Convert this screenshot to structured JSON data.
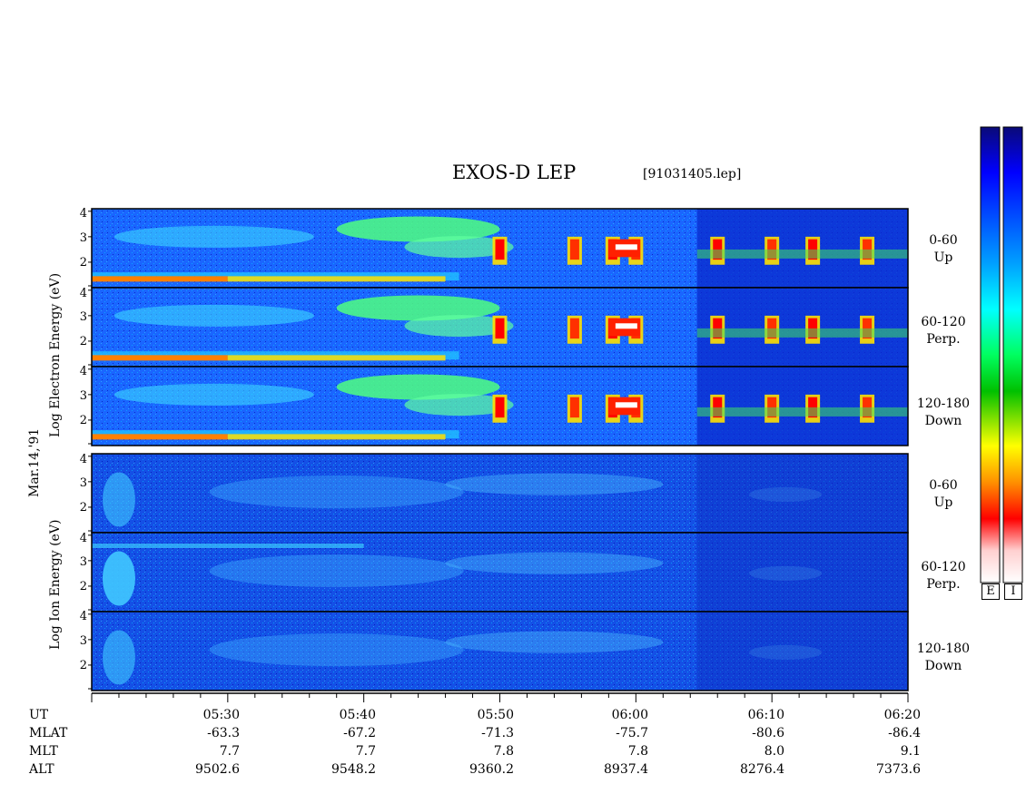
{
  "header": {
    "title": "EXOS-D LEP",
    "filename": "[91031405.lep]"
  },
  "date_label": "Mar.14,'91",
  "electron_ylabel": "Log Electron Energy (eV)",
  "ion_ylabel": "Log Ion Energy (eV)",
  "y_ticks": [
    "4",
    "3",
    "2"
  ],
  "pitch_labels": [
    {
      "range": "0-60",
      "dir": "Up"
    },
    {
      "range": "60-120",
      "dir": "Perp."
    },
    {
      "range": "120-180",
      "dir": "Down"
    },
    {
      "range": "0-60",
      "dir": "Up"
    },
    {
      "range": "60-120",
      "dir": "Perp."
    },
    {
      "range": "120-180",
      "dir": "Down"
    }
  ],
  "colorbar_tags": [
    "E",
    "I"
  ],
  "colors": {
    "background": "#ffffff",
    "colormap": [
      "#0a0a78",
      "#0000ff",
      "#00a0ff",
      "#00ffff",
      "#00ff60",
      "#00c000",
      "#ffff00",
      "#ff9000",
      "#ff0000",
      "#ffd0d0",
      "#ffffff"
    ]
  },
  "ephemeris": {
    "labels": [
      "UT",
      "MLAT",
      "MLT",
      "ALT"
    ],
    "columns": [
      {
        "UT": "05:30",
        "MLAT": "-63.3",
        "MLT": "7.7",
        "ALT": "9502.6"
      },
      {
        "UT": "05:40",
        "MLAT": "-67.2",
        "MLT": "7.7",
        "ALT": "9548.2"
      },
      {
        "UT": "05:50",
        "MLAT": "-71.3",
        "MLT": "7.8",
        "ALT": "9360.2"
      },
      {
        "UT": "06:00",
        "MLAT": "-75.7",
        "MLT": "7.8",
        "ALT": "8937.4"
      },
      {
        "UT": "06:10",
        "MLAT": "-80.6",
        "MLT": "8.0",
        "ALT": "8276.4"
      },
      {
        "UT": "06:20",
        "MLAT": "-86.4",
        "MLT": "9.1",
        "ALT": "7373.6"
      }
    ]
  },
  "chart_data": {
    "type": "heatmap",
    "title": "EXOS-D LEP",
    "x_axis": {
      "label": "UT",
      "ticks": [
        "05:30",
        "05:40",
        "05:50",
        "06:00",
        "06:10",
        "06:20"
      ],
      "range": [
        "05:20",
        "06:20"
      ]
    },
    "y_axis": {
      "label": "Log Energy (eV)",
      "range": [
        1,
        4.1
      ],
      "ticks": [
        2,
        3,
        4
      ]
    },
    "colorbar": {
      "orientation": "vertical",
      "labels": [
        "E",
        "I"
      ]
    },
    "panels": [
      {
        "species": "Electron",
        "pitch_angle": "0-60",
        "direction": "Up"
      },
      {
        "species": "Electron",
        "pitch_angle": "60-120",
        "direction": "Perp."
      },
      {
        "species": "Electron",
        "pitch_angle": "120-180",
        "direction": "Down"
      },
      {
        "species": "Ion",
        "pitch_angle": "0-60",
        "direction": "Up"
      },
      {
        "species": "Ion",
        "pitch_angle": "60-120",
        "direction": "Perp."
      },
      {
        "species": "Ion",
        "pitch_angle": "120-180",
        "direction": "Down"
      }
    ],
    "features": [
      {
        "panel": "electron",
        "description": "low-energy band near log E 1.5",
        "ut_start": "05:20",
        "ut_end": "05:45"
      },
      {
        "panel": "electron",
        "description": "broad green band, log E 3-4",
        "ut_start": "05:38",
        "ut_end": "05:50"
      },
      {
        "panel": "electron",
        "description": "intense bursts, log E 2-3",
        "ut_times": [
          "05:50",
          "05:55",
          "05:58",
          "06:00",
          "06:13",
          "06:17"
        ]
      }
    ]
  }
}
